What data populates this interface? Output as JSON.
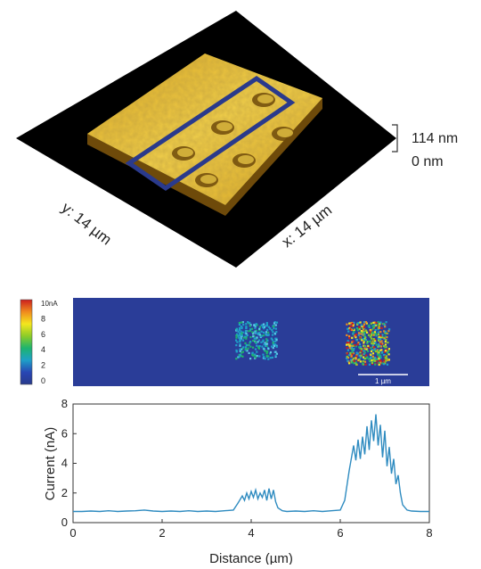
{
  "afm_panel": {
    "x_axis_label": "x: 14 µm",
    "y_axis_label": "y: 14 µm",
    "height_scale": {
      "max": "114 nm",
      "min": "0 nm"
    },
    "colors": {
      "surface_light": "#f2d04a",
      "surface_mid": "#d9a520",
      "surface_dark": "#6e4a0a",
      "highlight_box": "#2a3a8c",
      "background": "#000000"
    },
    "highlight_box_label": ""
  },
  "current_map": {
    "colorbar": {
      "ticks": [
        "10nA",
        "8",
        "6",
        "4",
        "2",
        "0"
      ],
      "colors": [
        "#cc1e1e",
        "#f08a1e",
        "#f4e61e",
        "#8ccc28",
        "#1eb46e",
        "#1ea0c8",
        "#2846b4",
        "#283a8c"
      ]
    },
    "scale_bar_label": "1 µm",
    "background_color": "#2a3d98"
  },
  "chart_data": {
    "type": "line",
    "title": "",
    "xlabel": "Distance (µm)",
    "ylabel": "Current (nA)",
    "xlim": [
      0,
      8
    ],
    "ylim": [
      0,
      8
    ],
    "xticks": [
      0,
      2,
      4,
      6,
      8
    ],
    "yticks": [
      0,
      2,
      4,
      6,
      8
    ],
    "grid": false,
    "series": [
      {
        "color": "#2e8bc0",
        "x": [
          0.0,
          0.2,
          0.4,
          0.6,
          0.8,
          1.0,
          1.2,
          1.4,
          1.6,
          1.8,
          2.0,
          2.2,
          2.4,
          2.6,
          2.8,
          3.0,
          3.2,
          3.4,
          3.6,
          3.7,
          3.8,
          3.85,
          3.9,
          3.95,
          4.0,
          4.05,
          4.1,
          4.15,
          4.2,
          4.25,
          4.3,
          4.35,
          4.4,
          4.45,
          4.5,
          4.55,
          4.6,
          4.7,
          4.8,
          5.0,
          5.2,
          5.4,
          5.6,
          5.8,
          6.0,
          6.1,
          6.2,
          6.3,
          6.35,
          6.4,
          6.45,
          6.5,
          6.55,
          6.6,
          6.65,
          6.7,
          6.75,
          6.8,
          6.85,
          6.9,
          6.95,
          7.0,
          7.05,
          7.1,
          7.15,
          7.2,
          7.25,
          7.3,
          7.35,
          7.4,
          7.5,
          7.6,
          7.8,
          8.0
        ],
        "y": [
          0.75,
          0.75,
          0.78,
          0.75,
          0.8,
          0.75,
          0.78,
          0.8,
          0.85,
          0.78,
          0.75,
          0.78,
          0.75,
          0.8,
          0.75,
          0.78,
          0.75,
          0.8,
          0.85,
          1.3,
          1.8,
          1.5,
          2.0,
          1.6,
          2.1,
          1.7,
          2.2,
          1.6,
          2.0,
          1.7,
          2.2,
          1.5,
          2.3,
          1.6,
          2.2,
          1.4,
          1.0,
          0.8,
          0.75,
          0.78,
          0.75,
          0.8,
          0.75,
          0.8,
          0.85,
          1.5,
          3.5,
          5.2,
          4.2,
          5.6,
          4.3,
          5.8,
          4.6,
          6.5,
          4.9,
          6.9,
          5.5,
          7.3,
          5.2,
          6.6,
          4.4,
          6.2,
          3.8,
          5.1,
          3.3,
          4.3,
          2.6,
          3.2,
          2.0,
          1.2,
          0.85,
          0.78,
          0.75,
          0.75
        ]
      }
    ]
  }
}
